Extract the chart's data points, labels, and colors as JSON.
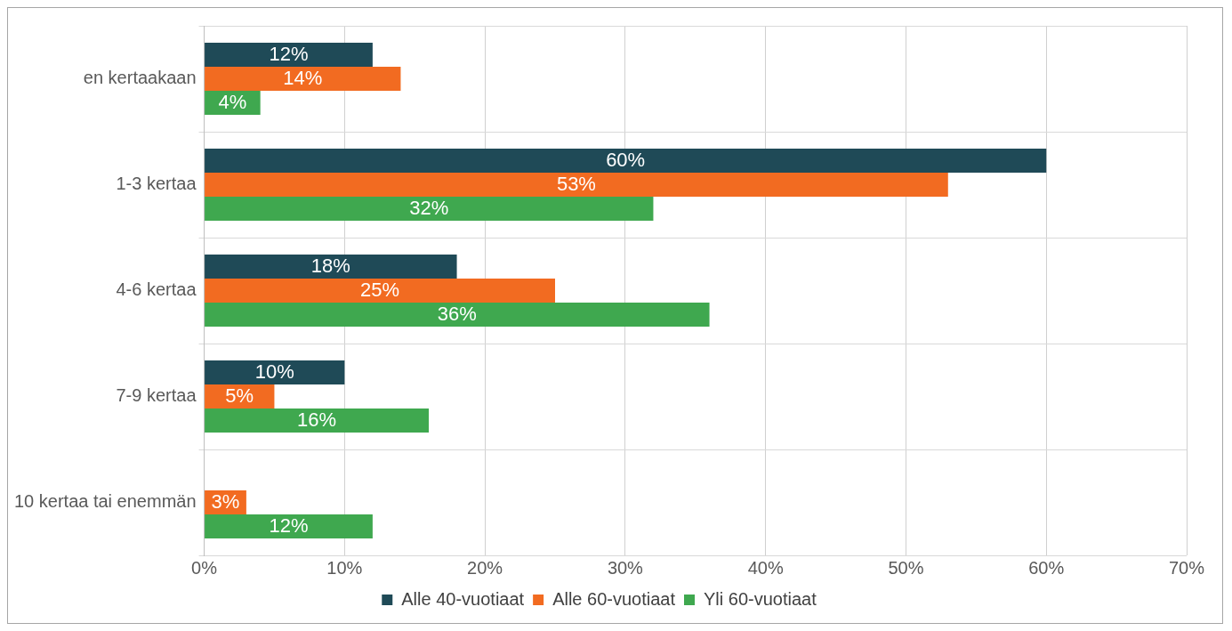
{
  "chart_data": {
    "type": "bar",
    "orientation": "horizontal",
    "categories": [
      "en kertaakaan",
      "1-3 kertaa",
      "4-6 kertaa",
      "7-9 kertaa",
      "10 kertaa tai enemmän"
    ],
    "series": [
      {
        "name": "Alle 40-vuotiaat",
        "color": "#1f4a57",
        "values": [
          12,
          60,
          18,
          10,
          null
        ],
        "value_labels": [
          "12%",
          "60%",
          "18%",
          "10%",
          null
        ]
      },
      {
        "name": "Alle 60-vuotiaat",
        "color": "#f26b21",
        "values": [
          14,
          53,
          25,
          5,
          3
        ],
        "value_labels": [
          "14%",
          "53%",
          "25%",
          "5%",
          "3%"
        ]
      },
      {
        "name": "Yli 60-vuotiaat",
        "color": "#3fa84f",
        "values": [
          4,
          32,
          36,
          16,
          12
        ],
        "value_labels": [
          "4%",
          "32%",
          "36%",
          "16%",
          "12%"
        ]
      }
    ],
    "xlim": [
      0,
      70
    ],
    "xticks": [
      {
        "value": 0,
        "label": "0%"
      },
      {
        "value": 10,
        "label": "10%"
      },
      {
        "value": 20,
        "label": "20%"
      },
      {
        "value": 30,
        "label": "30%"
      },
      {
        "value": 40,
        "label": "40%"
      },
      {
        "value": 50,
        "label": "50%"
      },
      {
        "value": 60,
        "label": "60%"
      },
      {
        "value": 70,
        "label": "70%"
      }
    ],
    "grid": true,
    "legend": "bottom"
  }
}
